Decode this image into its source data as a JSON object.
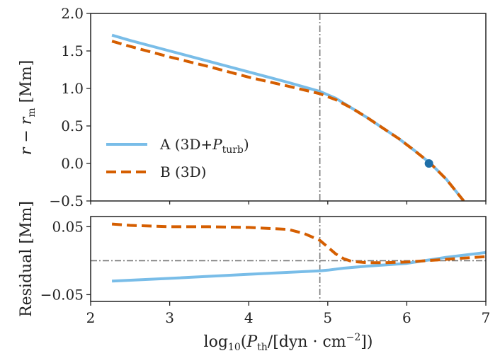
{
  "chart_data": [
    {
      "type": "line",
      "panel": "top",
      "title": "",
      "ylabel": "r − r_m [Mm]",
      "xlim": [
        2,
        7
      ],
      "ylim": [
        -0.5,
        2.0
      ],
      "yticks": [
        -0.5,
        0.0,
        0.5,
        1.0,
        1.5,
        2.0
      ],
      "ytick_labels": [
        "−0.5",
        "0.0",
        "0.5",
        "1.0",
        "1.5",
        "2.0"
      ],
      "vline_x": 4.9,
      "marker": {
        "x": 6.28,
        "y": 0.0,
        "color": "#1f6fa8"
      },
      "legend_position": "lower-left",
      "series": [
        {
          "name": "A (3D+P_turb)",
          "label_main": "A (3D+",
          "label_var": "P",
          "label_sub": "turb",
          "label_end": ")",
          "color": "#79bde8",
          "style": "solid",
          "x": [
            2.27,
            2.5,
            3.0,
            3.5,
            4.0,
            4.5,
            4.9,
            5.1,
            5.3,
            5.5,
            5.7,
            5.9,
            6.1,
            6.3,
            6.5,
            6.72
          ],
          "y": [
            1.71,
            1.64,
            1.5,
            1.36,
            1.22,
            1.08,
            0.96,
            0.87,
            0.74,
            0.61,
            0.47,
            0.33,
            0.17,
            0.0,
            -0.21,
            -0.5
          ]
        },
        {
          "name": "B (3D)",
          "label_main": "B (3D)",
          "color": "#d55e00",
          "style": "dashed",
          "x": [
            2.27,
            2.5,
            3.0,
            3.5,
            4.0,
            4.5,
            4.9,
            5.1,
            5.3,
            5.5,
            5.7,
            5.9,
            6.1,
            6.3,
            6.5,
            6.72
          ],
          "y": [
            1.63,
            1.56,
            1.42,
            1.29,
            1.15,
            1.03,
            0.93,
            0.85,
            0.74,
            0.61,
            0.47,
            0.33,
            0.17,
            0.0,
            -0.21,
            -0.5
          ]
        }
      ]
    },
    {
      "type": "line",
      "panel": "bottom",
      "ylabel": "Residual [Mm]",
      "xlabel": "log10(P_th/[dyn · cm^−2])",
      "xlim": [
        2,
        7
      ],
      "ylim": [
        -0.06,
        0.065
      ],
      "yticks": [
        -0.05,
        0.05
      ],
      "ytick_labels": [
        "−0.05",
        "0.05"
      ],
      "xticks": [
        2,
        3,
        4,
        5,
        6,
        7
      ],
      "xtick_labels": [
        "2",
        "3",
        "4",
        "5",
        "6",
        "7"
      ],
      "vline_x": 4.9,
      "hline_y": 0.0,
      "series": [
        {
          "name": "A (3D+P_turb)",
          "color": "#79bde8",
          "style": "solid",
          "x": [
            2.27,
            3.0,
            4.0,
            4.9,
            5.0,
            5.2,
            5.5,
            6.0,
            6.5,
            7.0
          ],
          "y": [
            -0.03,
            -0.026,
            -0.02,
            -0.015,
            -0.014,
            -0.011,
            -0.008,
            -0.004,
            0.005,
            0.012
          ]
        },
        {
          "name": "B (3D)",
          "color": "#d55e00",
          "style": "dashed",
          "x": [
            2.27,
            2.5,
            3.0,
            3.5,
            4.0,
            4.5,
            4.7,
            4.9,
            5.0,
            5.1,
            5.2,
            5.3,
            5.5,
            5.7,
            6.0,
            6.5,
            7.0
          ],
          "y": [
            0.054,
            0.052,
            0.05,
            0.05,
            0.049,
            0.046,
            0.04,
            0.03,
            0.02,
            0.01,
            0.003,
            -0.001,
            -0.003,
            -0.003,
            -0.002,
            0.002,
            0.006
          ]
        }
      ]
    }
  ]
}
